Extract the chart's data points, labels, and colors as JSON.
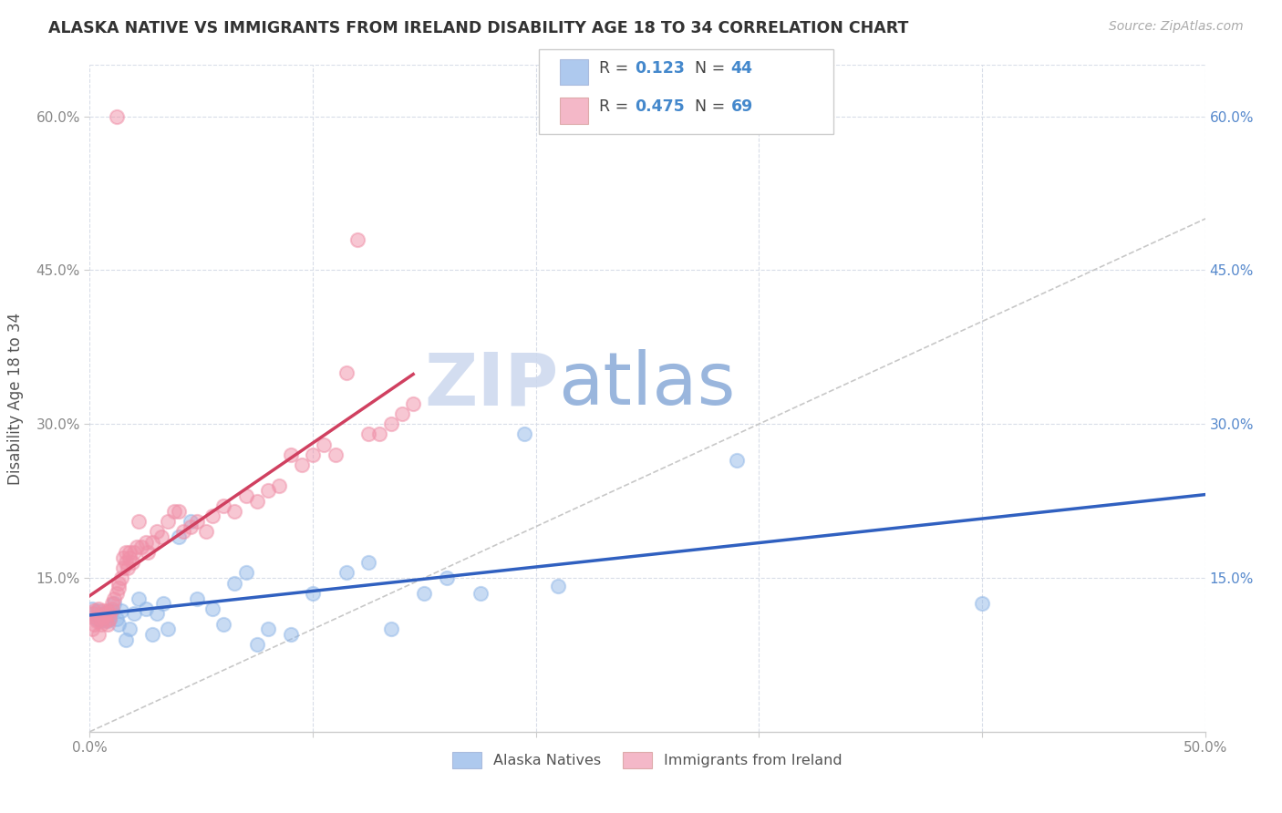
{
  "title": "ALASKA NATIVE VS IMMIGRANTS FROM IRELAND DISABILITY AGE 18 TO 34 CORRELATION CHART",
  "source": "Source: ZipAtlas.com",
  "ylabel": "Disability Age 18 to 34",
  "xlim": [
    0.0,
    0.5
  ],
  "ylim": [
    0.0,
    0.65
  ],
  "xticks": [
    0.0,
    0.1,
    0.2,
    0.3,
    0.4,
    0.5
  ],
  "xticklabels": [
    "0.0%",
    "",
    "",
    "",
    "",
    "50.0%"
  ],
  "yticks": [
    0.15,
    0.3,
    0.45,
    0.6
  ],
  "yticklabels": [
    "15.0%",
    "30.0%",
    "45.0%",
    "60.0%"
  ],
  "right_yticklabels": [
    "15.0%",
    "30.0%",
    "45.0%",
    "60.0%"
  ],
  "watermark_zip": "ZIP",
  "watermark_atlas": "atlas",
  "legend_r1_val": "0.123",
  "legend_n1_val": "44",
  "legend_r2_val": "0.475",
  "legend_n2_val": "69",
  "color_blue_fill": "#aec9ee",
  "color_pink_fill": "#f4b8c8",
  "color_blue_scatter": "#92b8e8",
  "color_pink_scatter": "#f090a8",
  "color_blue_line": "#3060c0",
  "color_pink_line": "#d04060",
  "color_diag": "#c8c8c8",
  "color_grid": "#d8dde8",
  "label_alaska": "Alaska Natives",
  "label_ireland": "Immigrants from Ireland",
  "alaska_x": [
    0.001,
    0.002,
    0.003,
    0.004,
    0.005,
    0.006,
    0.007,
    0.008,
    0.009,
    0.01,
    0.011,
    0.012,
    0.013,
    0.014,
    0.016,
    0.018,
    0.02,
    0.022,
    0.025,
    0.028,
    0.03,
    0.033,
    0.035,
    0.04,
    0.045,
    0.048,
    0.055,
    0.06,
    0.065,
    0.07,
    0.075,
    0.08,
    0.09,
    0.1,
    0.115,
    0.125,
    0.135,
    0.15,
    0.16,
    0.175,
    0.195,
    0.21,
    0.29,
    0.4
  ],
  "alaska_y": [
    0.12,
    0.115,
    0.11,
    0.118,
    0.108,
    0.115,
    0.112,
    0.108,
    0.11,
    0.118,
    0.125,
    0.11,
    0.105,
    0.118,
    0.09,
    0.1,
    0.115,
    0.13,
    0.12,
    0.095,
    0.115,
    0.125,
    0.1,
    0.19,
    0.205,
    0.13,
    0.12,
    0.105,
    0.145,
    0.155,
    0.085,
    0.1,
    0.095,
    0.135,
    0.155,
    0.165,
    0.1,
    0.135,
    0.15,
    0.135,
    0.29,
    0.142,
    0.265,
    0.125
  ],
  "ireland_x": [
    0.001,
    0.001,
    0.002,
    0.002,
    0.003,
    0.003,
    0.004,
    0.004,
    0.005,
    0.005,
    0.006,
    0.006,
    0.007,
    0.007,
    0.008,
    0.008,
    0.009,
    0.009,
    0.01,
    0.01,
    0.011,
    0.012,
    0.012,
    0.013,
    0.013,
    0.014,
    0.015,
    0.015,
    0.016,
    0.016,
    0.017,
    0.018,
    0.018,
    0.019,
    0.02,
    0.021,
    0.022,
    0.023,
    0.025,
    0.026,
    0.028,
    0.03,
    0.032,
    0.035,
    0.038,
    0.04,
    0.042,
    0.045,
    0.048,
    0.052,
    0.055,
    0.06,
    0.065,
    0.07,
    0.075,
    0.08,
    0.085,
    0.09,
    0.095,
    0.1,
    0.105,
    0.11,
    0.115,
    0.12,
    0.125,
    0.13,
    0.135,
    0.14,
    0.145
  ],
  "ireland_y": [
    0.1,
    0.115,
    0.105,
    0.118,
    0.108,
    0.112,
    0.095,
    0.12,
    0.105,
    0.11,
    0.112,
    0.118,
    0.108,
    0.115,
    0.105,
    0.118,
    0.11,
    0.115,
    0.12,
    0.125,
    0.13,
    0.135,
    0.6,
    0.14,
    0.145,
    0.15,
    0.16,
    0.17,
    0.165,
    0.175,
    0.16,
    0.17,
    0.175,
    0.165,
    0.175,
    0.18,
    0.205,
    0.18,
    0.185,
    0.175,
    0.185,
    0.195,
    0.19,
    0.205,
    0.215,
    0.215,
    0.195,
    0.2,
    0.205,
    0.195,
    0.21,
    0.22,
    0.215,
    0.23,
    0.225,
    0.235,
    0.24,
    0.27,
    0.26,
    0.27,
    0.28,
    0.27,
    0.35,
    0.48,
    0.29,
    0.29,
    0.3,
    0.31,
    0.32
  ]
}
